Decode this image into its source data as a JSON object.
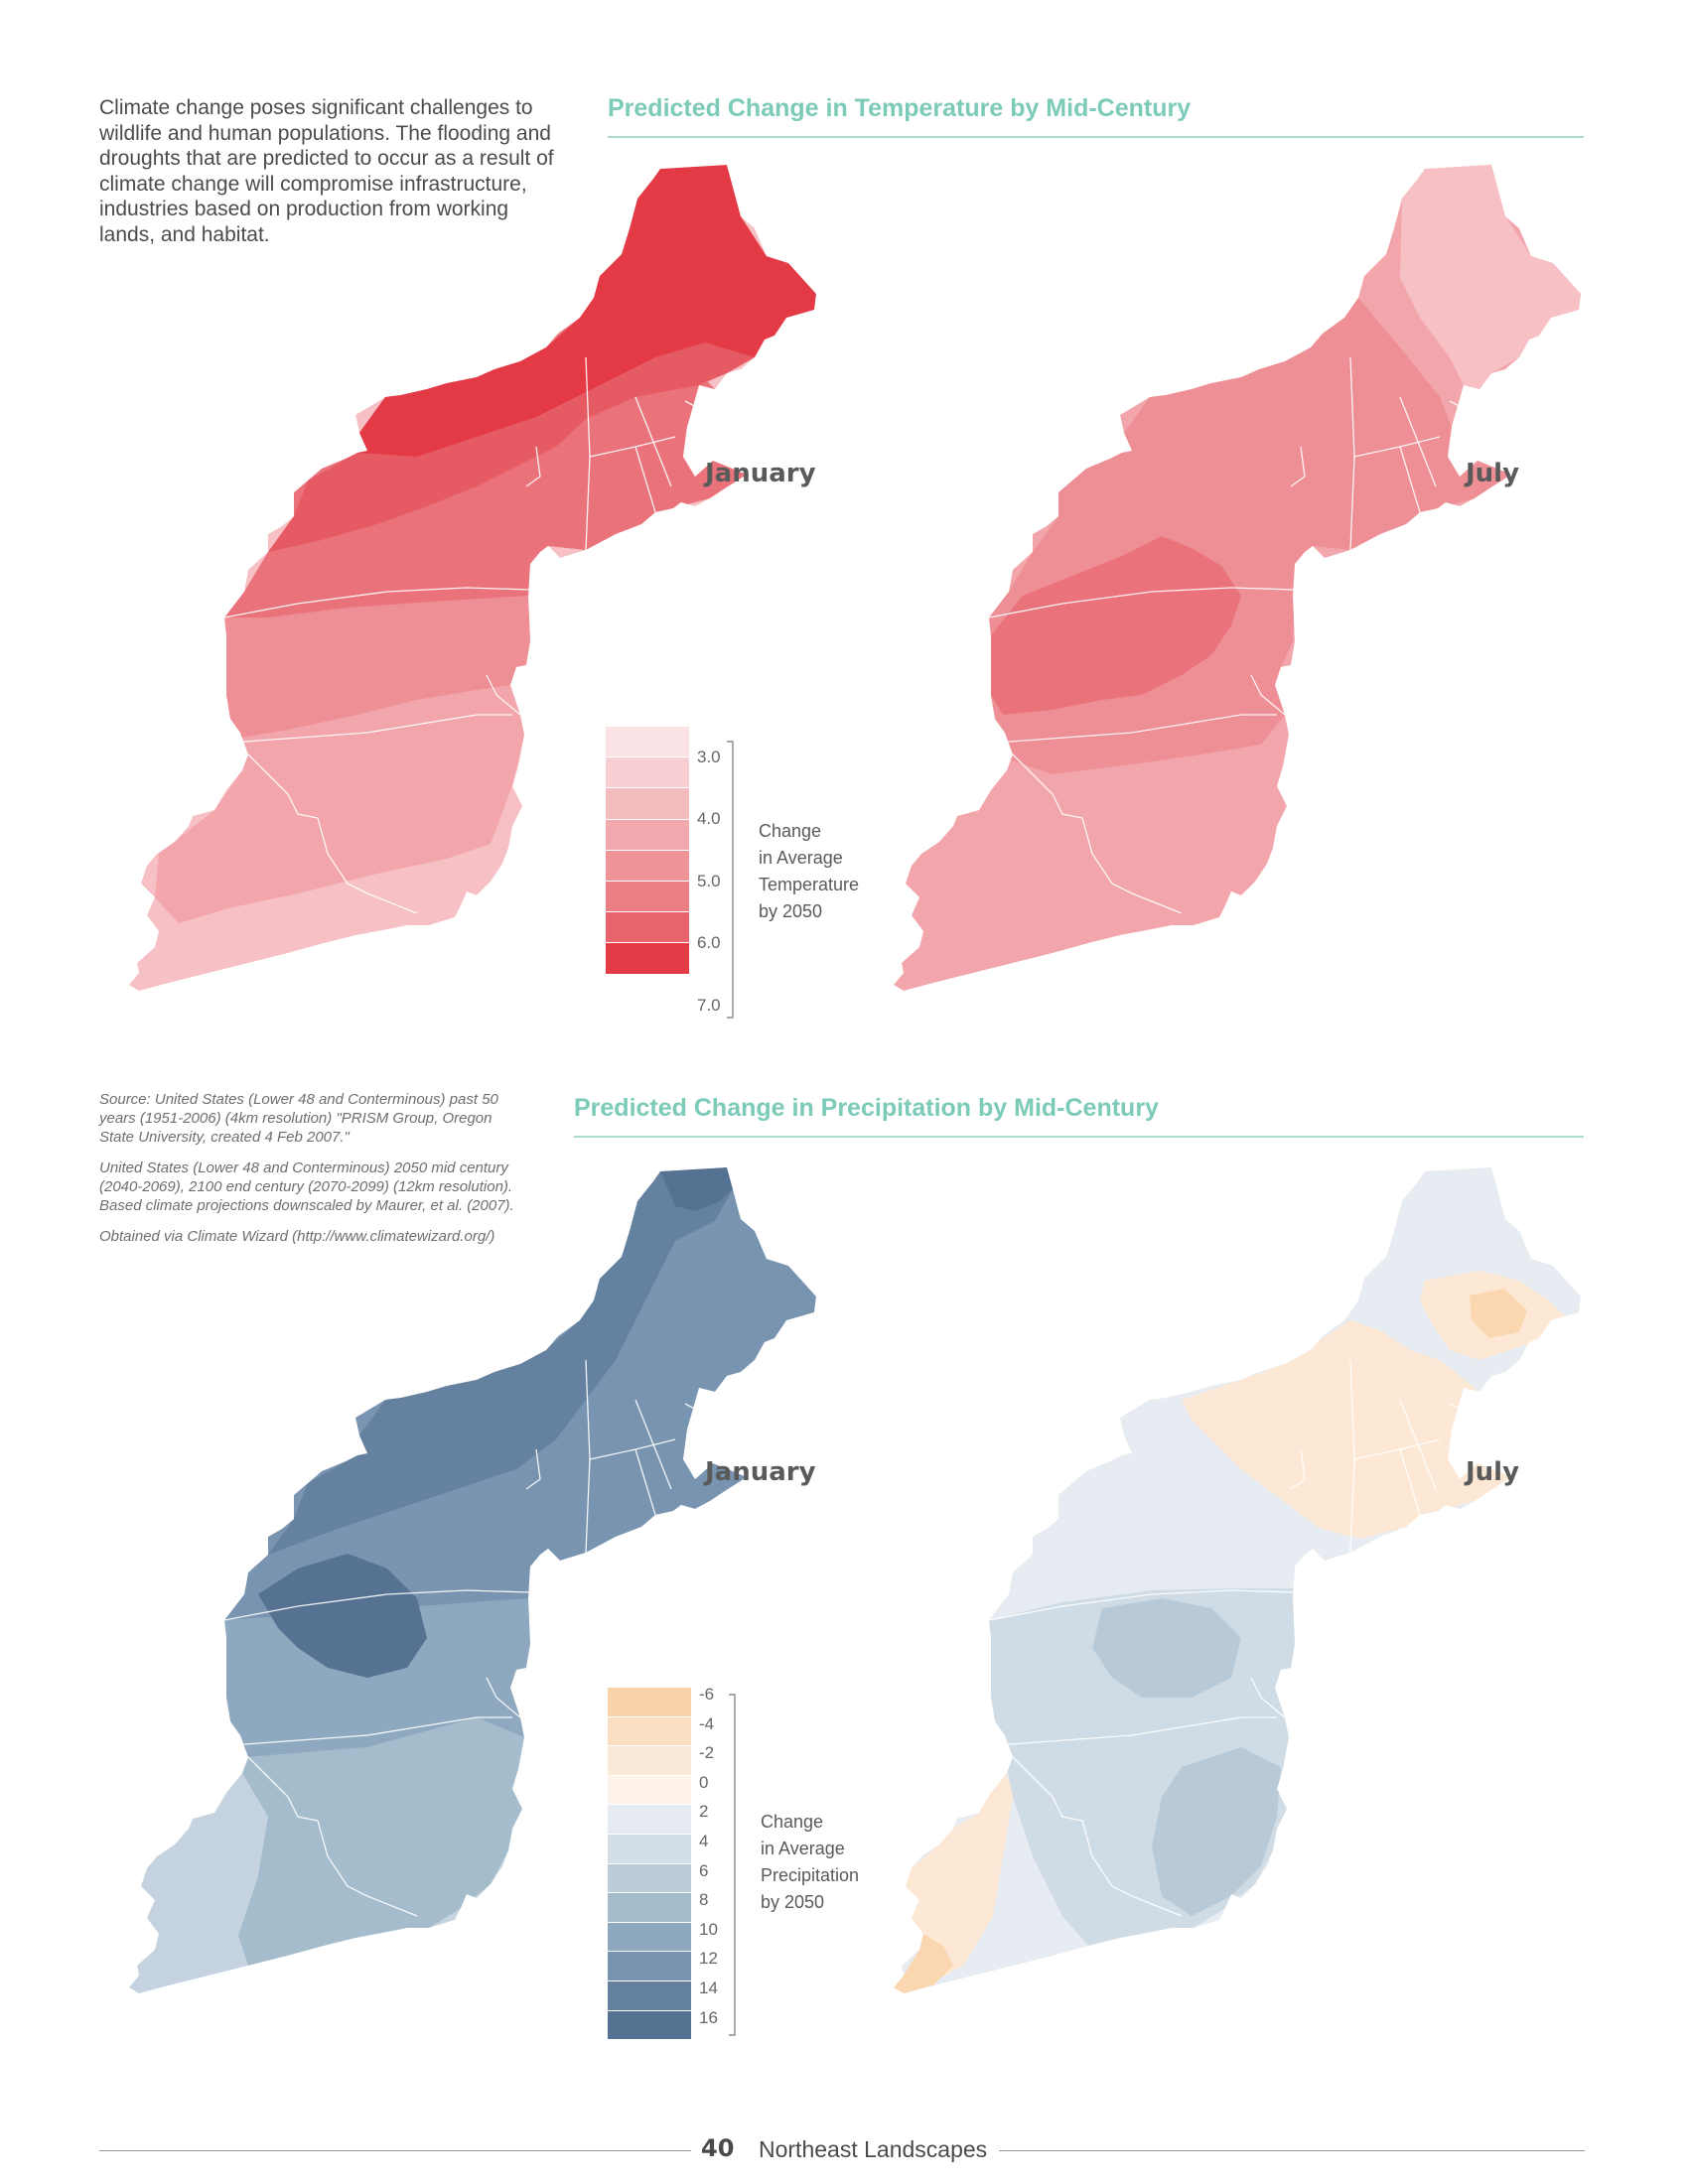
{
  "intro_text": "Climate change poses significant challenges to wildlife and human populations. The flooding and droughts that are predicted to occur as a result of climate change will compromise infrastructure, industries based on production from working lands, and habitat.",
  "source_paragraphs": [
    "Source: United States (Lower 48 and Conterminous) past 50 years (1951-2006) (4km resolution) \"PRISM Group, Oregon State University, created 4 Feb 2007.\"",
    "United States (Lower 48 and Conterminous) 2050 mid century (2040-2069), 2100 end century (2070-2099) (12km resolution). Based climate projections downscaled by Maurer, et al. (2007).",
    "Obtained via Climate Wizard (http://www.climatewizard.org/)"
  ],
  "temperature": {
    "title": "Predicted Change in Temperature by Mid-Century",
    "maps": [
      {
        "month": "January"
      },
      {
        "month": "July"
      }
    ],
    "legend": {
      "label": "Change in Average Temperature by 2050",
      "label_lines": [
        "Change",
        "in Average",
        "Temperature",
        "by 2050"
      ],
      "ticks": [
        "3.0",
        "4.0",
        "5.0",
        "6.0",
        "7.0"
      ],
      "colors": [
        "#fbe3e5",
        "#f8d0d3",
        "#f5bcc0",
        "#f2a8ad",
        "#ef9399",
        "#eb7d84",
        "#e8636b",
        "#e53b46"
      ]
    },
    "palette": [
      "#f6c0c4",
      "#f2a6ab",
      "#ee8e95",
      "#ea737b",
      "#e65a63",
      "#e43a45"
    ]
  },
  "precipitation": {
    "title": "Predicted Change in Precipitation by Mid-Century",
    "maps": [
      {
        "month": "January"
      },
      {
        "month": "July"
      }
    ],
    "legend": {
      "label": "Change in Average Precipitation by 2050",
      "label_lines": [
        "Change",
        "in Average",
        "Precipitation",
        "by 2050"
      ],
      "ticks": [
        "-6",
        "-4",
        "-2",
        "0",
        "2",
        "4",
        "6",
        "8",
        "10",
        "12",
        "14",
        "16"
      ],
      "colors": [
        "#f8d3a9",
        "#fadfc2",
        "#fbe9d8",
        "#fdf3ea",
        "#e5ebf0",
        "#d3dee6",
        "#bccdda",
        "#a5bccd",
        "#8ea9bf",
        "#7894b0",
        "#6581a0",
        "#557293"
      ]
    },
    "palette_january": [
      "#c4d3df",
      "#a5bccd",
      "#8ea9bf",
      "#7894b0",
      "#6581a0",
      "#557293"
    ],
    "palette_july": [
      "#fad7b0",
      "#fce8d4",
      "#e6ecf1",
      "#d0dce5",
      "#b8cad8",
      "#a3b8c9"
    ]
  },
  "footer": {
    "page_number": "40",
    "title": "Northeast Landscapes"
  }
}
